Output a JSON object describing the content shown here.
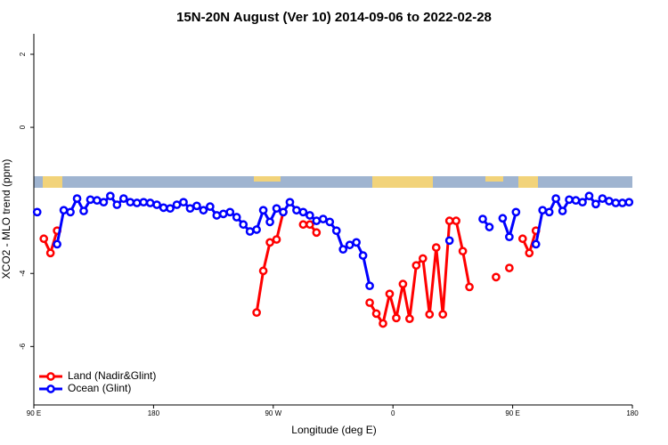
{
  "chart_data": {
    "type": "line",
    "title": "15N-20N August (Ver 10)   2014-09-06 to 2022-02-28",
    "x_label": "Longitude (deg E)",
    "y_label": "XCO2 - MLO trend (ppm)",
    "xlim": [
      90,
      540
    ],
    "ylim": [
      -7.6,
      2.56
    ],
    "xticks": [
      {
        "value": 90,
        "label": "90 E"
      },
      180,
      {
        "value": 270,
        "label": "90 W"
      },
      {
        "value": 360,
        "label": "0"
      },
      {
        "value": 450,
        "label": "90 E"
      },
      {
        "value": 540,
        "label": "180"
      }
    ],
    "yticks": [
      -6,
      -4,
      0,
      2
    ],
    "legend": "bottomleft",
    "x": [
      92.5,
      97.5,
      102.5,
      107.5,
      112.5,
      117.5,
      122.5,
      127.5,
      132.5,
      137.5,
      142.5,
      147.5,
      152.5,
      157.5,
      162.5,
      167.5,
      172.5,
      177.5,
      182.5,
      187.5,
      192.5,
      197.5,
      202.5,
      207.5,
      212.5,
      217.5,
      222.5,
      227.5,
      232.5,
      237.5,
      242.5,
      247.5,
      252.5,
      257.5,
      262.5,
      267.5,
      272.5,
      277.5,
      282.5,
      287.5,
      292.5,
      297.5,
      302.5,
      307.5,
      312.5,
      317.5,
      322.5,
      327.5,
      332.5,
      337.5,
      342.5,
      347.5,
      352.5,
      357.5,
      362.5,
      367.5,
      372.5,
      377.5,
      382.5,
      387.5,
      392.5,
      397.5,
      402.5,
      407.5,
      412.5,
      417.5,
      422.5,
      427.5,
      432.5,
      437.5,
      442.5,
      447.5,
      452.5,
      457.5,
      462.5,
      467.5,
      472.5,
      477.5,
      482.5,
      487.5,
      492.5,
      497.5,
      502.5,
      507.5,
      512.5,
      517.5,
      522.5,
      527.5,
      532.5,
      537.5
    ],
    "series": [
      {
        "name": "Land (Nadir&Glint)",
        "color": "#ff0000",
        "values": [
          null,
          -3.05,
          -3.44,
          -2.83,
          null,
          null,
          null,
          null,
          null,
          null,
          null,
          null,
          null,
          null,
          null,
          null,
          null,
          null,
          null,
          null,
          null,
          null,
          null,
          null,
          null,
          null,
          null,
          null,
          null,
          null,
          null,
          null,
          null,
          -5.07,
          -3.93,
          -3.15,
          -3.07,
          -2.32,
          null,
          null,
          -2.66,
          -2.66,
          -2.88,
          null,
          null,
          null,
          null,
          null,
          null,
          null,
          -4.8,
          -5.1,
          -5.37,
          -4.56,
          -5.22,
          -4.29,
          -5.24,
          -3.78,
          -3.59,
          -5.12,
          -3.29,
          -5.12,
          -2.56,
          -2.56,
          -3.39,
          -4.37,
          null,
          null,
          null,
          -4.1,
          null,
          -3.85,
          null,
          -3.05,
          -3.44,
          -2.83,
          null,
          null,
          null,
          null,
          null,
          null,
          null,
          null,
          null,
          null,
          null,
          null,
          null,
          null
        ]
      },
      {
        "name": "Ocean (Glint)",
        "color": "#0000ff",
        "values": [
          -2.32,
          null,
          null,
          -3.2,
          -2.27,
          -2.32,
          -1.95,
          -2.29,
          -1.98,
          -2.0,
          -2.05,
          -1.88,
          -2.12,
          -1.95,
          -2.05,
          -2.07,
          -2.05,
          -2.07,
          -2.12,
          -2.2,
          -2.22,
          -2.12,
          -2.05,
          -2.22,
          -2.15,
          -2.27,
          -2.17,
          -2.41,
          -2.37,
          -2.32,
          -2.46,
          -2.66,
          -2.85,
          -2.8,
          -2.27,
          -2.59,
          -2.22,
          -2.32,
          -2.05,
          -2.27,
          -2.32,
          -2.41,
          -2.56,
          -2.51,
          -2.59,
          -2.83,
          -3.34,
          -3.22,
          -3.15,
          -3.51,
          -4.34,
          null,
          null,
          null,
          null,
          null,
          null,
          null,
          null,
          null,
          null,
          null,
          -3.1,
          null,
          null,
          null,
          null,
          -2.51,
          -2.73,
          null,
          -2.49,
          -3.0,
          -2.32,
          null,
          null,
          -3.2,
          -2.27,
          -2.32,
          -1.95,
          -2.29,
          -1.98,
          -2.0,
          -2.05,
          -1.88,
          -2.1,
          -1.95,
          -2.02,
          -2.07,
          -2.07,
          -2.05
        ]
      }
    ]
  }
}
